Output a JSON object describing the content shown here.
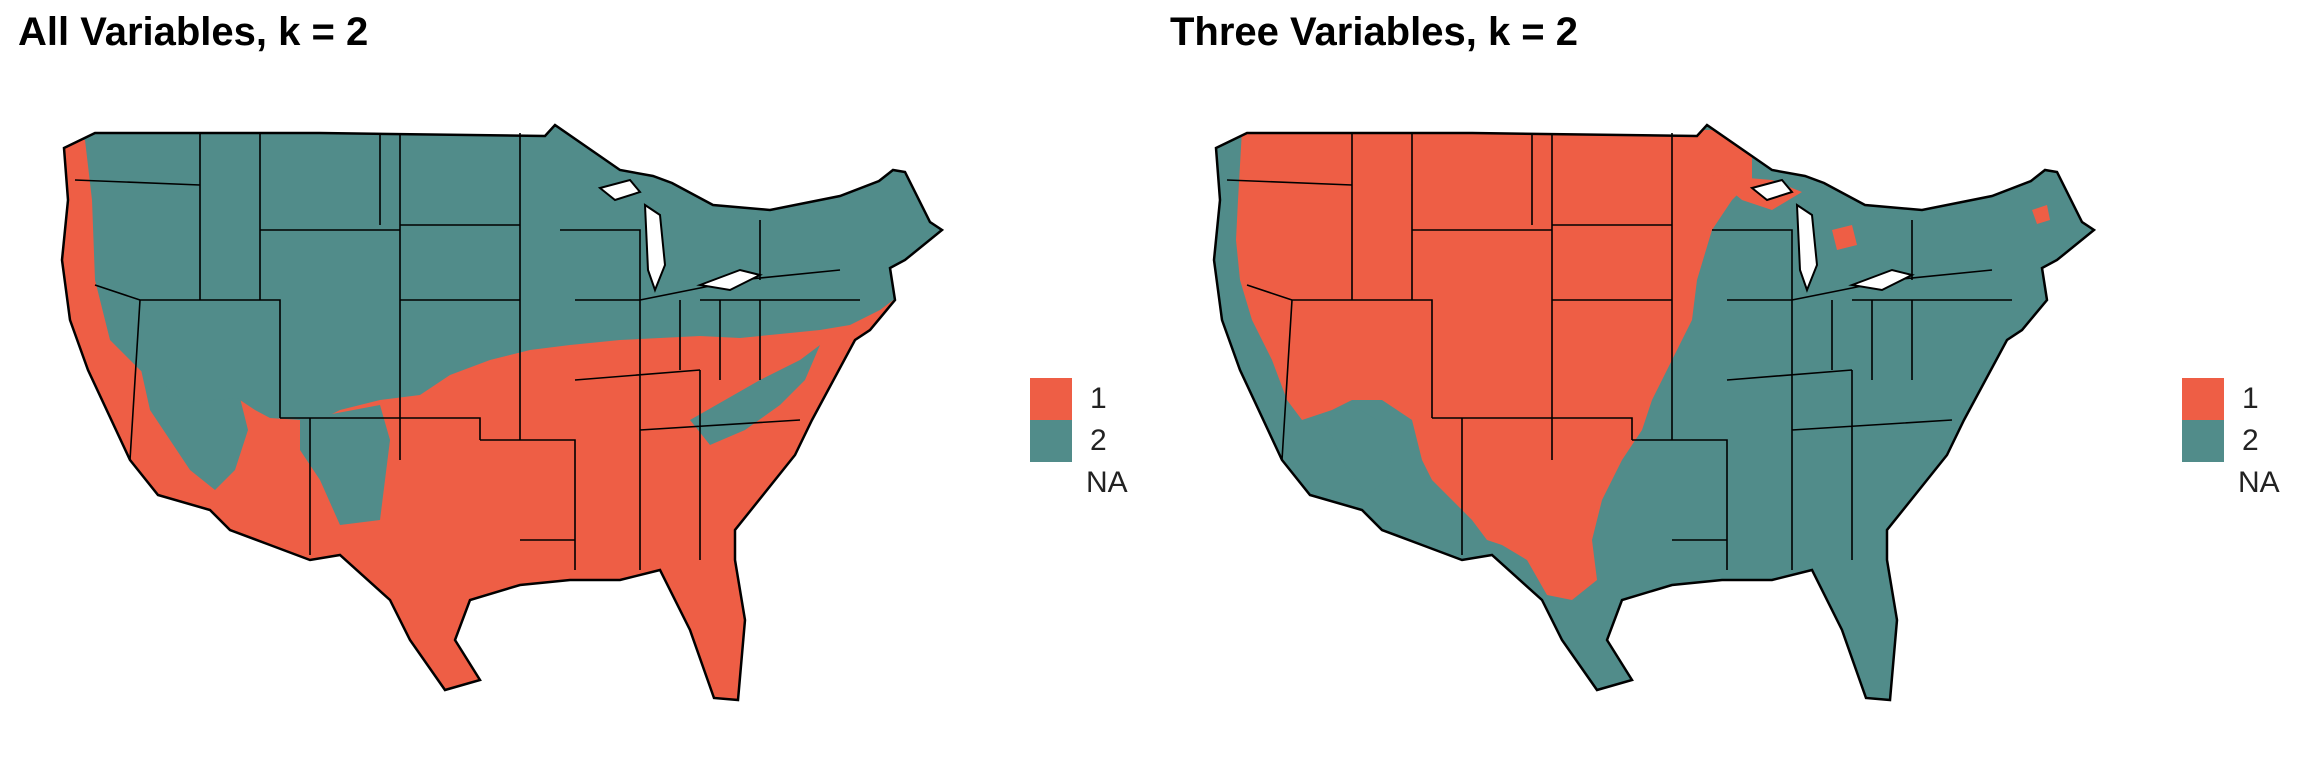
{
  "colors": {
    "cluster_1": "#EE5E45",
    "cluster_2": "#518C8A",
    "border": "#000000"
  },
  "panels": [
    {
      "title": "All Variables, k = 2",
      "legend": [
        {
          "label": "1",
          "color": "#EE5E45"
        },
        {
          "label": "2",
          "color": "#518C8A"
        },
        {
          "label": "NA",
          "color": "none"
        }
      ]
    },
    {
      "title": "Three Variables, k = 2",
      "legend": [
        {
          "label": "1",
          "color": "#EE5E45"
        },
        {
          "label": "2",
          "color": "#518C8A"
        },
        {
          "label": "NA",
          "color": "none"
        }
      ]
    }
  ]
}
